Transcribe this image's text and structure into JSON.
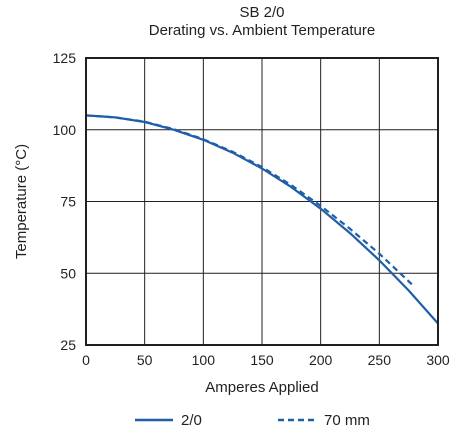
{
  "chart_data": {
    "type": "line",
    "title": "SB 2/0",
    "subtitle": "Derating vs. Ambient Temperature",
    "xlabel": "Amperes Applied",
    "ylabel": "Temperature (°C)",
    "xlim": [
      0,
      300
    ],
    "ylim": [
      25,
      125
    ],
    "xticks": [
      "0",
      "50",
      "100",
      "150",
      "200",
      "250",
      "300"
    ],
    "yticks": [
      "25",
      "50",
      "75",
      "100",
      "125"
    ],
    "grid": true,
    "legend_position": "bottom",
    "series": [
      {
        "name": "2/0",
        "style": "solid",
        "color": "#1f5fa8",
        "x": [
          0,
          25,
          50,
          75,
          100,
          125,
          150,
          175,
          200,
          225,
          250,
          275,
          300
        ],
        "y": [
          105,
          104.3,
          102.7,
          100,
          96.5,
          92,
          86.5,
          80,
          72.5,
          64,
          54.5,
          44,
          32.5
        ]
      },
      {
        "name": "70 mm",
        "style": "dashed",
        "color": "#1f5fa8",
        "x": [
          0,
          25,
          50,
          75,
          100,
          125,
          150,
          175,
          200,
          225,
          250,
          275,
          280
        ],
        "y": [
          105,
          104.3,
          102.8,
          100.2,
          96.7,
          92.3,
          87,
          80.7,
          73.5,
          65.5,
          56.8,
          47.2,
          45.2
        ]
      }
    ]
  }
}
